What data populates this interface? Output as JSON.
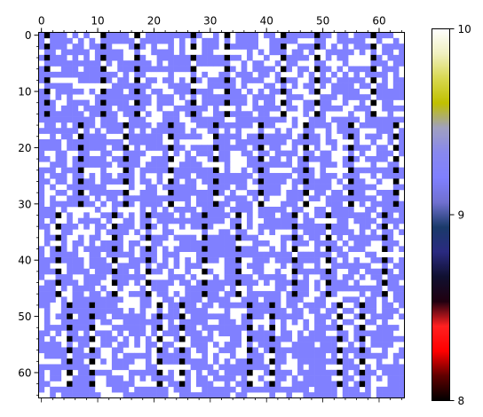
{
  "chart_data": {
    "type": "heatmap",
    "title": "",
    "xlabel": "",
    "ylabel": "",
    "rows": 65,
    "cols": 65,
    "xlim": [
      -0.5,
      64.5
    ],
    "ylim": [
      64.5,
      -0.5
    ],
    "x_axis_position": "top",
    "x_ticks": [
      0,
      10,
      20,
      30,
      40,
      50,
      60
    ],
    "x_tick_labels": [
      "0",
      "10",
      "20",
      "30",
      "40",
      "50",
      "60"
    ],
    "y_ticks": [
      0,
      10,
      20,
      30,
      40,
      50,
      60
    ],
    "y_tick_labels": [
      "0",
      "10",
      "20",
      "30",
      "40",
      "50",
      "60"
    ],
    "grid": false,
    "value_levels": [
      8,
      9,
      10
    ],
    "level_colors": {
      "8": "#000000",
      "9": "#8080ff",
      "10": "#ffffff"
    },
    "colorbar": {
      "position": "right",
      "vmin": 8,
      "vmax": 10,
      "ticks": [
        8,
        9,
        10
      ],
      "tick_labels": [
        "8",
        "9",
        "10"
      ],
      "gradient_colors": [
        "#000000",
        "#600000",
        "#ff0000",
        "#ff2020",
        "#200010",
        "#101030",
        "#2a2a80",
        "#1a3a6a",
        "#7070d0",
        "#8080ff",
        "#8888ee",
        "#a0a0c0",
        "#c0c000",
        "#d8d850",
        "#f0f0c0",
        "#ffffff"
      ]
    },
    "black_stripes": [
      {
        "col": 1,
        "row_start": 0,
        "row_end": 14
      },
      {
        "col": 11,
        "row_start": 0,
        "row_end": 14
      },
      {
        "col": 17,
        "row_start": 0,
        "row_end": 14
      },
      {
        "col": 27,
        "row_start": 0,
        "row_end": 14
      },
      {
        "col": 33,
        "row_start": 0,
        "row_end": 14
      },
      {
        "col": 43,
        "row_start": 0,
        "row_end": 14
      },
      {
        "col": 49,
        "row_start": 0,
        "row_end": 14
      },
      {
        "col": 59,
        "row_start": 0,
        "row_end": 14
      },
      {
        "col": 7,
        "row_start": 16,
        "row_end": 30
      },
      {
        "col": 15,
        "row_start": 16,
        "row_end": 30
      },
      {
        "col": 23,
        "row_start": 16,
        "row_end": 30
      },
      {
        "col": 31,
        "row_start": 16,
        "row_end": 30
      },
      {
        "col": 39,
        "row_start": 16,
        "row_end": 30
      },
      {
        "col": 47,
        "row_start": 16,
        "row_end": 30
      },
      {
        "col": 55,
        "row_start": 16,
        "row_end": 30
      },
      {
        "col": 63,
        "row_start": 16,
        "row_end": 30
      },
      {
        "col": 3,
        "row_start": 32,
        "row_end": 46
      },
      {
        "col": 13,
        "row_start": 32,
        "row_end": 46
      },
      {
        "col": 19,
        "row_start": 32,
        "row_end": 46
      },
      {
        "col": 29,
        "row_start": 32,
        "row_end": 46
      },
      {
        "col": 35,
        "row_start": 32,
        "row_end": 46
      },
      {
        "col": 45,
        "row_start": 32,
        "row_end": 46
      },
      {
        "col": 51,
        "row_start": 32,
        "row_end": 46
      },
      {
        "col": 61,
        "row_start": 32,
        "row_end": 46
      },
      {
        "col": 5,
        "row_start": 48,
        "row_end": 63
      },
      {
        "col": 9,
        "row_start": 48,
        "row_end": 63
      },
      {
        "col": 21,
        "row_start": 48,
        "row_end": 63
      },
      {
        "col": 25,
        "row_start": 48,
        "row_end": 63
      },
      {
        "col": 37,
        "row_start": 48,
        "row_end": 63
      },
      {
        "col": 41,
        "row_start": 48,
        "row_end": 63
      },
      {
        "col": 53,
        "row_start": 48,
        "row_end": 63
      },
      {
        "col": 57,
        "row_start": 48,
        "row_end": 63
      }
    ]
  }
}
